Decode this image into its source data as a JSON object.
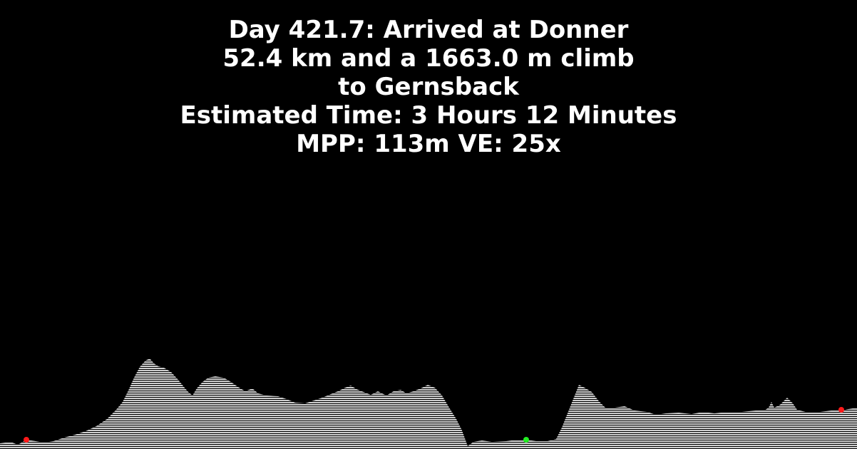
{
  "header": {
    "line1": "Day 421.7: Arrived at Donner",
    "line2": "52.4 km and a 1663.0 m climb",
    "line3": "to Gernsback",
    "line4": "Estimated Time: 3 Hours 12 Minutes",
    "line5": "MPP: 113m VE: 25x"
  },
  "colors": {
    "background": "#000000",
    "text": "#ffffff",
    "terrain_fill": "#cfcfcf",
    "terrain_hatch": "#000000",
    "start_marker": "#ff1a1a",
    "current_marker": "#22ee22",
    "end_marker": "#ff1a1a"
  },
  "markers": {
    "start": "red-dot",
    "current": "green-dot",
    "end": "red-dot"
  }
}
